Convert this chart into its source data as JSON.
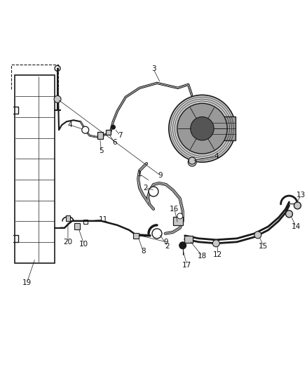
{
  "bg_color": "#ffffff",
  "line_color": "#1a1a1a",
  "fig_width": 4.38,
  "fig_height": 5.33,
  "dpi": 100,
  "gray_light": "#c8c8c8",
  "gray_mid": "#999999",
  "gray_dark": "#555555"
}
